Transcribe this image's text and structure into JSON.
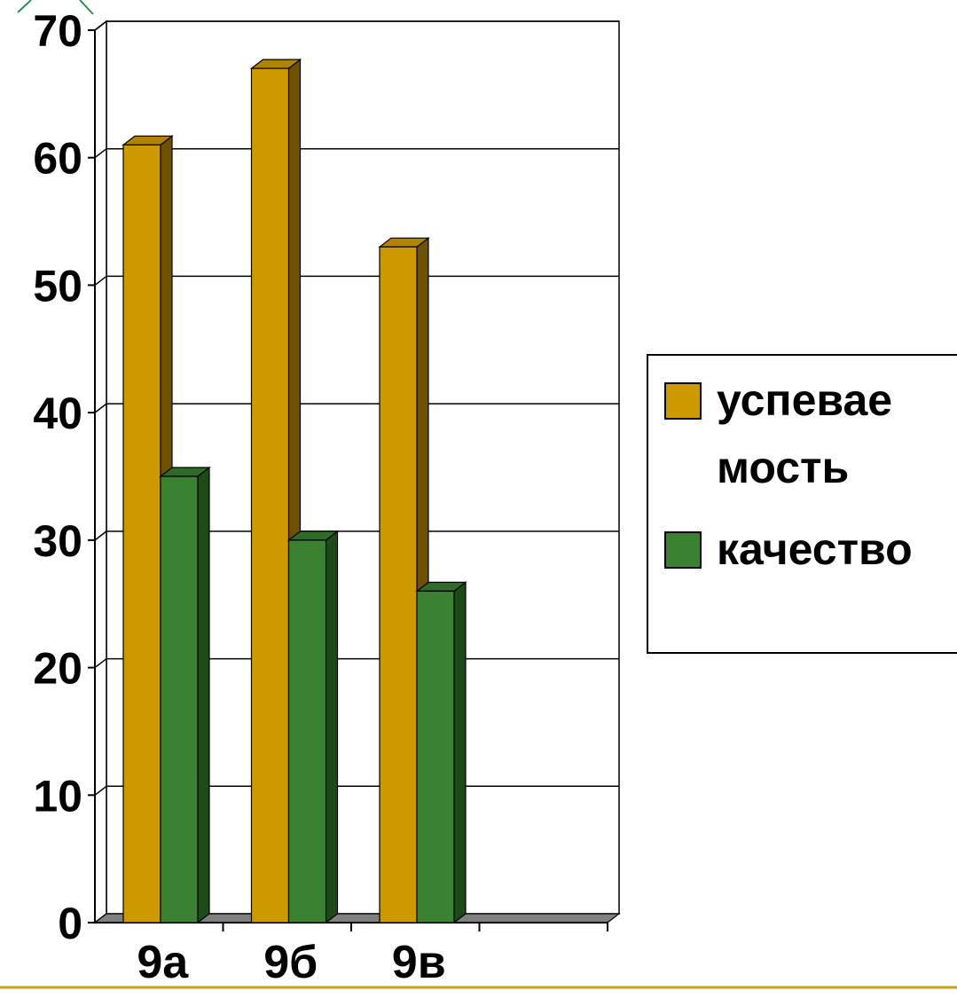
{
  "chart_data": {
    "type": "bar",
    "categories": [
      "9а",
      "9б",
      "9в",
      ""
    ],
    "series": [
      {
        "name": "успеваемость",
        "legend_lines": [
          "успевае",
          "мость"
        ],
        "values": [
          61,
          67,
          53,
          null
        ],
        "color": "#CC9900",
        "top_color": "#B08400",
        "side_color": "#6E5200"
      },
      {
        "name": "качество",
        "legend_lines": [
          "качество"
        ],
        "values": [
          35,
          30,
          26,
          null
        ],
        "color": "#3B8132",
        "top_color": "#2F6A28",
        "side_color": "#1E4A1A"
      }
    ],
    "ylim": [
      0,
      70
    ],
    "yticks": [
      "0",
      "10",
      "20",
      "30",
      "40",
      "50",
      "60",
      "70"
    ],
    "grid": true,
    "legend_position": "right",
    "title": "",
    "xlabel": "",
    "ylabel": ""
  },
  "colors": {
    "gridline": "#000000",
    "floor": "#808080",
    "footer_line": "#C8A020",
    "corner_accent": "#2E8B57"
  }
}
